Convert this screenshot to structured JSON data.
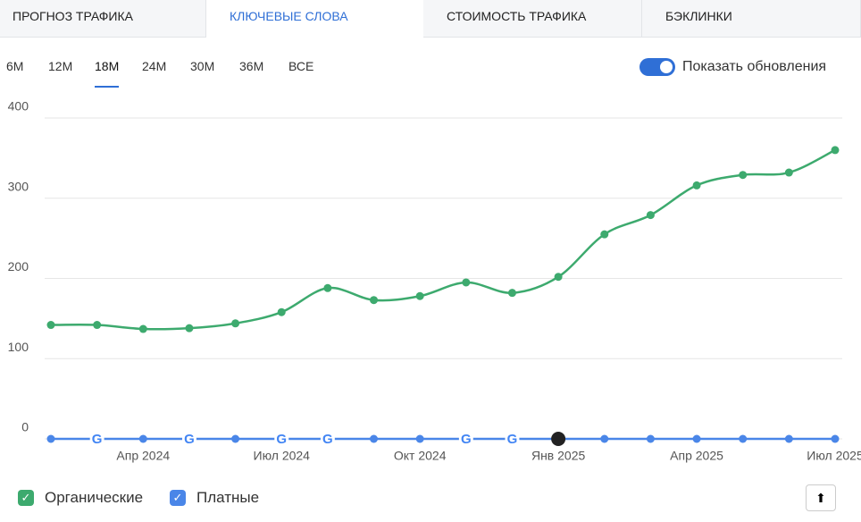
{
  "tabs": [
    "ПРОГНОЗ ТРАФИКА",
    "КЛЮЧЕВЫЕ СЛОВА",
    "СТОИМОСТЬ ТРАФИКА",
    "БЭКЛИНКИ"
  ],
  "periods": [
    "6M",
    "12M",
    "18M",
    "24M",
    "30M",
    "36M",
    "ВСЕ"
  ],
  "toggle_label": "Показать обновления",
  "chart_data": {
    "type": "line",
    "categories": [
      null,
      null,
      "Апр 2024",
      null,
      null,
      "Июл 2024",
      null,
      null,
      "Окт 2024",
      null,
      null,
      "Янв 2025",
      null,
      null,
      "Апр 2025",
      null,
      null,
      "Июл 2025"
    ],
    "series": [
      {
        "name": "Органические",
        "color": "#3daa6e",
        "values": [
          142,
          142,
          137,
          138,
          144,
          158,
          188,
          173,
          178,
          195,
          182,
          202,
          255,
          279,
          316,
          329,
          332,
          360
        ]
      },
      {
        "name": "Платные",
        "color": "#4a86e8",
        "values": [
          0,
          0,
          0,
          0,
          0,
          0,
          0,
          0,
          0,
          0,
          0,
          0,
          0,
          0,
          0,
          0,
          0,
          0
        ]
      }
    ],
    "ylim": [
      0,
      400
    ],
    "yticks": [
      0,
      100,
      200,
      300,
      400
    ],
    "grid": true
  }
}
